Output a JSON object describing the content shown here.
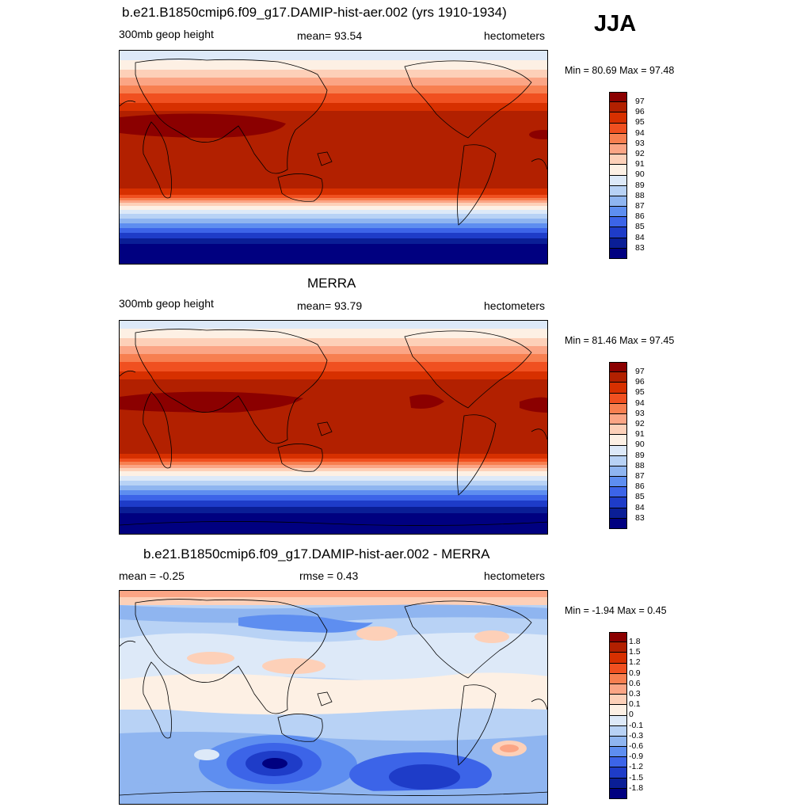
{
  "season": "JJA",
  "panels": [
    {
      "title": "b.e21.B1850cmip6.f09_g17.DAMIP-hist-aer.002 (yrs 1910-1934)",
      "left_label": "300mb geop height",
      "center_label": "mean=  93.54",
      "right_label": "hectometers",
      "minmax": "Min =  80.69 Max =  97.48",
      "colorbar_labels": [
        "97",
        "96",
        "95",
        "94",
        "93",
        "92",
        "91",
        "90",
        "89",
        "88",
        "87",
        "86",
        "85",
        "84",
        "83"
      ]
    },
    {
      "title": "MERRA",
      "left_label": "300mb geop height",
      "center_label": "mean=  93.79",
      "right_label": "hectometers",
      "minmax": "Min =  81.46 Max =  97.45",
      "colorbar_labels": [
        "97",
        "96",
        "95",
        "94",
        "93",
        "92",
        "91",
        "90",
        "89",
        "88",
        "87",
        "86",
        "85",
        "84",
        "83"
      ]
    },
    {
      "title": "b.e21.B1850cmip6.f09_g17.DAMIP-hist-aer.002 - MERRA",
      "left_label": "mean =  -0.25",
      "center_label": "rmse =   0.43",
      "right_label": "hectometers",
      "minmax": "Min =  -1.94 Max =   0.45",
      "colorbar_labels": [
        "1.8",
        "1.5",
        "1.2",
        "0.9",
        "0.6",
        "0.3",
        "0.1",
        "0",
        "-0.1",
        "-0.3",
        "-0.6",
        "-0.9",
        "-1.2",
        "-1.5",
        "-1.8"
      ]
    }
  ],
  "colors": {
    "field_scale": [
      "#8b0000",
      "#b22000",
      "#d73000",
      "#f05020",
      "#f77f50",
      "#fba585",
      "#fdd0b8",
      "#fdf0e4",
      "#dde9f8",
      "#b8d2f5",
      "#8fb5f0",
      "#5e8ef0",
      "#3c64e8",
      "#1e3cc8",
      "#0a1e96",
      "#000080"
    ],
    "diff_scale": [
      "#8b0000",
      "#b22000",
      "#d73000",
      "#f05020",
      "#f77f50",
      "#fba585",
      "#fdd0b8",
      "#fdf0e4",
      "#dde9f8",
      "#b8d2f5",
      "#8fb5f0",
      "#5e8ef0",
      "#3c64e8",
      "#1e3cc8",
      "#0a1e96",
      "#000080"
    ],
    "coastline": "#000000"
  }
}
